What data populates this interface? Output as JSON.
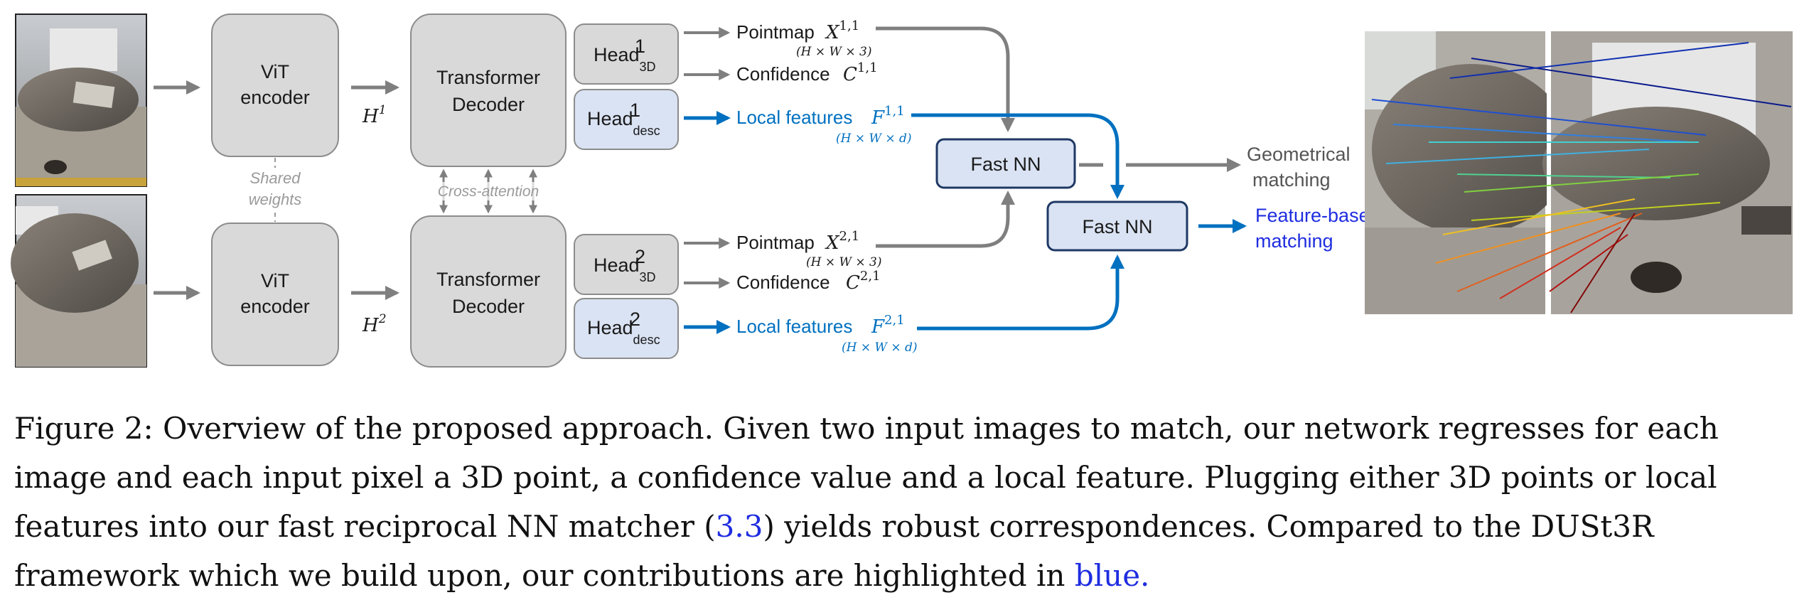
{
  "vit_label": [
    "ViT",
    "encoder"
  ],
  "decoder_label": [
    "Transformer",
    "Decoder"
  ],
  "head_base": "Head",
  "head_sub_3d": "3D",
  "head_sub_desc": "desc",
  "sup1": "1",
  "sup2": "2",
  "h1": {
    "base": "H",
    "sup": "1"
  },
  "h2": {
    "base": "H",
    "sup": "2"
  },
  "shared_weights": [
    "Shared",
    "weights"
  ],
  "cross_attention": "Cross-attention",
  "pointmap": "Pointmap",
  "confidence": "Confidence",
  "local_features": "Local features",
  "x11": {
    "base": "X",
    "sup": "1,1"
  },
  "c11": {
    "base": "C",
    "sup": "1,1"
  },
  "f11": {
    "base": "F",
    "sup": "1,1"
  },
  "x21": {
    "base": "X",
    "sup": "2,1"
  },
  "c21": {
    "base": "C",
    "sup": "2,1"
  },
  "f21": {
    "base": "F",
    "sup": "2,1"
  },
  "dim_hw3": "(H × W × 3)",
  "dim_hwd": "(H × W × d)",
  "fast_nn": "Fast NN",
  "geometrical_matching": [
    "Geometrical",
    "matching"
  ],
  "feature_matching": [
    "Feature-based",
    "matching"
  ],
  "caption": {
    "prefix": "Figure 2: Overview of the proposed approach. Given two input images to match, our network regresses for each image and each input pixel a 3D point, a confidence value and a local feature. Plugging either 3D points or local features into our fast reciprocal NN matcher (",
    "ref": "3.3",
    "middle": ") yields robust correspondences. Compared to the DUSt3R framework which we build upon, our contributions are highlighted in ",
    "blue_word": "blue."
  },
  "colors": {
    "gray_box": "#d9d9d9",
    "blue_box": "#dae3f3",
    "blue_arrow": "#0070c0",
    "gray_arrow": "#7f7f7f",
    "dark_blue_border": "#1f3864"
  }
}
